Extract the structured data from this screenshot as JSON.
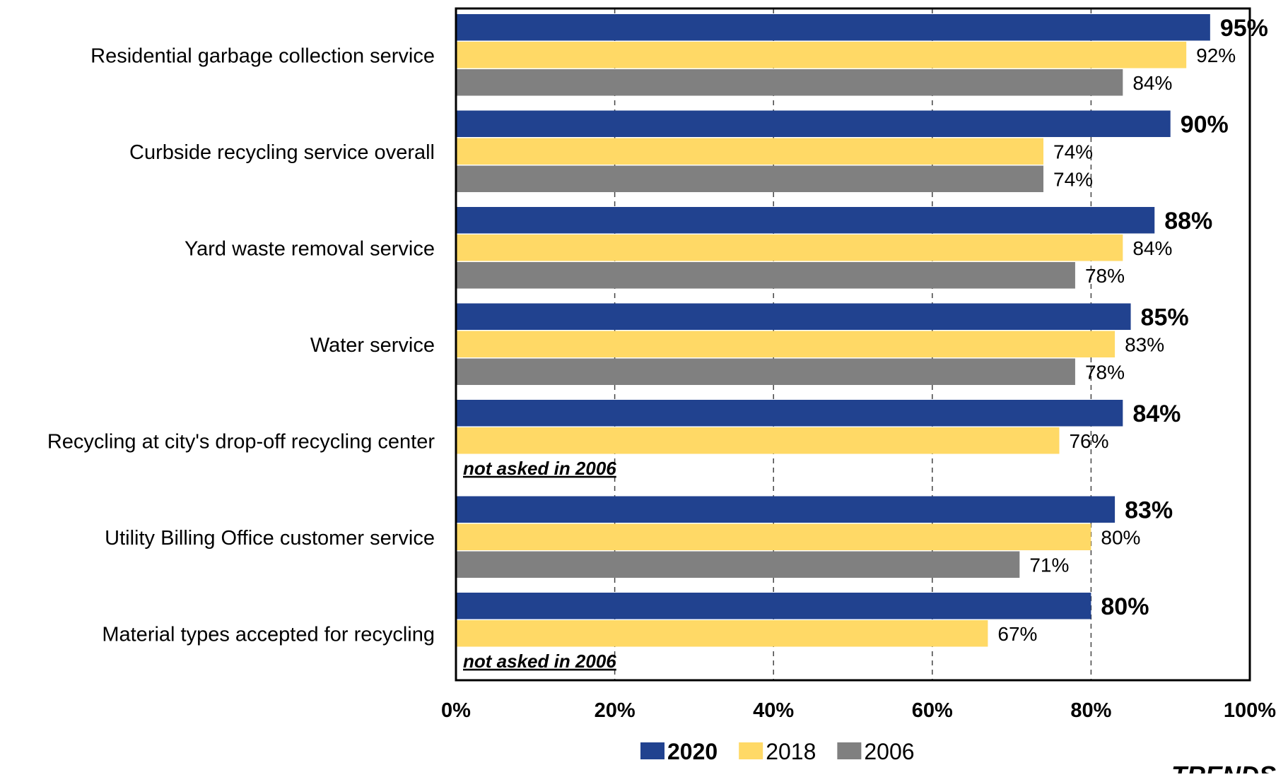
{
  "chart_data": {
    "type": "bar",
    "orientation": "horizontal",
    "categories": [
      "Residential garbage collection service",
      "Curbside recycling service overall",
      "Yard waste removal service",
      "Water service",
      "Recycling at city's drop-off recycling center",
      "Utility Billing Office customer service",
      "Material types accepted for recycling"
    ],
    "series": [
      {
        "name": "2020",
        "color": "#21428f",
        "values": [
          95,
          90,
          88,
          85,
          84,
          83,
          80
        ]
      },
      {
        "name": "2018",
        "color": "#ffd966",
        "values": [
          92,
          74,
          84,
          83,
          76,
          80,
          67
        ]
      },
      {
        "name": "2006",
        "color": "#808080",
        "values": [
          84,
          74,
          78,
          78,
          null,
          71,
          null
        ]
      }
    ],
    "xlim": [
      0,
      100
    ],
    "x_ticks": [
      "0%",
      "20%",
      "40%",
      "60%",
      "80%",
      "100%"
    ],
    "value_suffix": "%",
    "missing_note": "not asked in 2006",
    "grid": "vertical dashed",
    "legend_position": "bottom"
  },
  "corner_text": "TRENDS"
}
